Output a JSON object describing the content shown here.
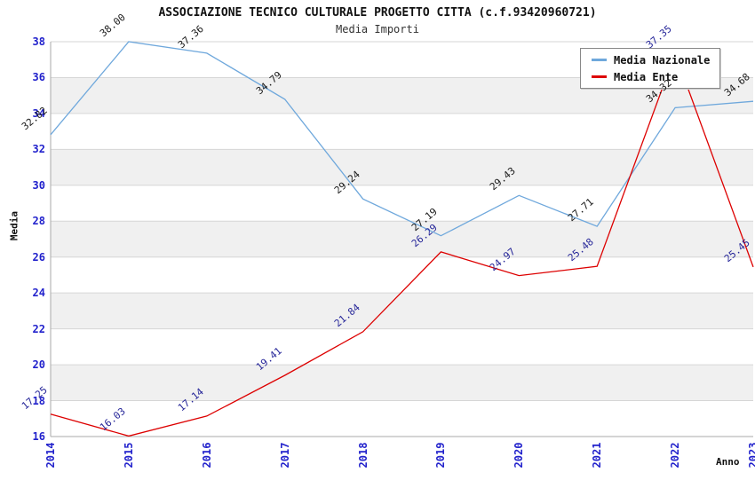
{
  "header": {
    "title": "ASSOCIAZIONE TECNICO CULTURALE PROGETTO CITTA (c.f.93420960721)",
    "subtitle": "Media Importi"
  },
  "legend": {
    "items": [
      {
        "label": "Media Nazionale",
        "color": "#6FA8DC"
      },
      {
        "label": "Media Ente",
        "color": "#DD0000"
      }
    ]
  },
  "chart_data": {
    "type": "line",
    "title": "ASSOCIAZIONE TECNICO CULTURALE PROGETTO CITTA (c.f.93420960721)",
    "subtitle": "Media Importi",
    "xlabel": "Anno",
    "ylabel": "Media",
    "x": [
      "2014",
      "2015",
      "2016",
      "2017",
      "2018",
      "2019",
      "2020",
      "2021",
      "2022",
      "2023"
    ],
    "series": [
      {
        "name": "Media Nazionale",
        "color": "#6FA8DC",
        "label_color": "#1a1a1a",
        "values": [
          32.82,
          38.0,
          37.36,
          34.79,
          29.24,
          27.19,
          29.43,
          27.71,
          34.32,
          34.68
        ],
        "labels": [
          "32.82",
          "38.00",
          "37.36",
          "34.79",
          "29.24",
          "27.19",
          "29.43",
          "27.71",
          "34.32",
          "34.68"
        ]
      },
      {
        "name": "Media Ente",
        "color": "#DD0000",
        "label_color": "#262699",
        "values": [
          17.25,
          16.03,
          17.14,
          19.41,
          21.84,
          26.29,
          24.97,
          25.48,
          37.35,
          25.45
        ],
        "labels": [
          "17.25",
          "16.03",
          "17.14",
          "19.41",
          "21.84",
          "26.29",
          "24.97",
          "25.48",
          "37.35",
          "25.45"
        ]
      }
    ],
    "ylim": [
      16,
      38
    ],
    "ytick_step": 2,
    "y_ticks": [
      "16",
      "18",
      "20",
      "22",
      "24",
      "26",
      "28",
      "30",
      "32",
      "34",
      "36",
      "38"
    ],
    "grid": true,
    "legend_position": "top-right",
    "band_colors": [
      "#ffffff",
      "#f0f0f0"
    ],
    "gridline_color": "#d6d6d6",
    "axis_line_color": "#aaaaaa",
    "tick_color": "#2222cc"
  }
}
